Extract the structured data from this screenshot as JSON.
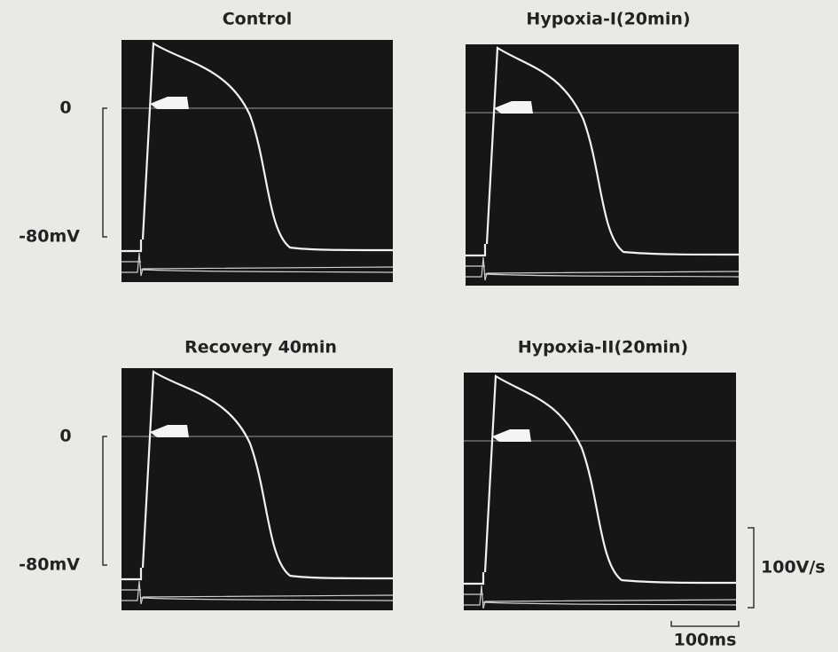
{
  "panels": [
    {
      "title": "Control",
      "zero_label": "0",
      "bottom_label": "-80mV"
    },
    {
      "title": "Hypoxia-I(20min)"
    },
    {
      "title": "Recovery 40min",
      "zero_label": "0",
      "bottom_label": "-80mV"
    },
    {
      "title": "Hypoxia-II(20min)"
    }
  ],
  "scale_bars": {
    "dvdt": "100V/s",
    "time": "100ms"
  }
}
